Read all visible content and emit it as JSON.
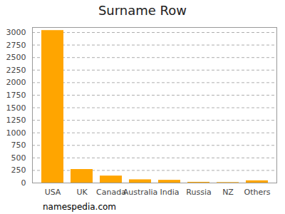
{
  "chart_data": {
    "type": "bar",
    "title": "Surname Row",
    "categories": [
      "USA",
      "UK",
      "Canada",
      "Australia",
      "India",
      "Russia",
      "NZ",
      "Others"
    ],
    "values": [
      3040,
      270,
      140,
      65,
      55,
      15,
      10,
      45
    ],
    "color": "#ffa500",
    "ylim": [
      0,
      3100
    ],
    "yticks": [
      0,
      250,
      500,
      750,
      1000,
      1250,
      1500,
      1750,
      2000,
      2250,
      2500,
      2750,
      3000
    ],
    "grid": true,
    "caption": "namespedia.com"
  }
}
